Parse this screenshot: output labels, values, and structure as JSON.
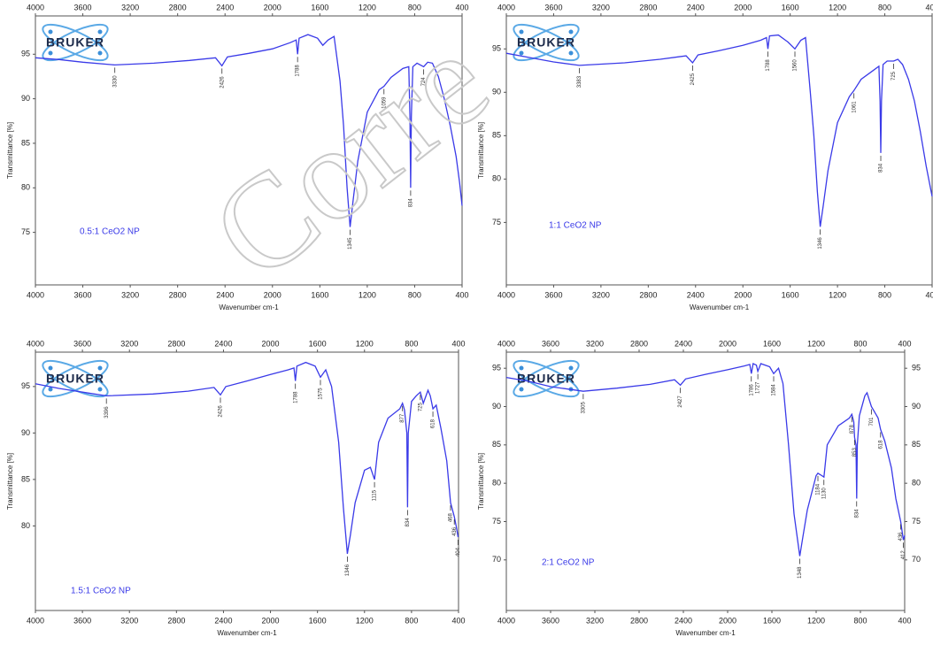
{
  "watermark": "Corre",
  "chart_data": [
    {
      "type": "line",
      "sample": "0.5:1 CeO2 NP",
      "logo": "BRUKER",
      "x_label": "Wavenumber cm-1",
      "y_label": "Transmittance [%]",
      "color": "#3a3ae8",
      "x": [
        4000,
        3800,
        3600,
        3330,
        3000,
        2700,
        2480,
        2426,
        2380,
        2200,
        2000,
        1850,
        1800,
        1788,
        1775,
        1700,
        1620,
        1575,
        1530,
        1480,
        1430,
        1400,
        1370,
        1345,
        1320,
        1280,
        1200,
        1100,
        1059,
        1000,
        900,
        850,
        840,
        834,
        828,
        815,
        780,
        724,
        690,
        650,
        600,
        550,
        500,
        450,
        420,
        400
      ],
      "values": [
        94.6,
        94.4,
        94.1,
        93.8,
        94.0,
        94.3,
        94.6,
        93.7,
        94.7,
        95.1,
        95.6,
        96.3,
        96.6,
        95.0,
        96.8,
        97.2,
        96.8,
        96.0,
        96.6,
        97.0,
        92.0,
        87.0,
        80.0,
        75.6,
        78.5,
        83.0,
        88.5,
        91.0,
        91.4,
        92.4,
        93.4,
        93.6,
        88.0,
        80.0,
        88.0,
        93.6,
        94.0,
        93.6,
        94.1,
        94.0,
        92.5,
        90.0,
        87.0,
        83.5,
        80.5,
        78.0
      ],
      "xlim": [
        4000,
        400
      ],
      "ylim": [
        69.1,
        99.3
      ],
      "xticks": [
        4000,
        3600,
        3200,
        2800,
        2400,
        2000,
        1600,
        1200,
        800,
        400
      ],
      "yticks": [
        75,
        80,
        85,
        90,
        95
      ],
      "peaks": [
        3330,
        2426,
        1788,
        1345,
        1059,
        834,
        724
      ],
      "right_axis": false
    },
    {
      "type": "line",
      "sample": "1:1 CeO2 NP",
      "logo": "BRUKER",
      "x_label": "Wavenumber cm-1",
      "y_label": "Transmittance [%]",
      "color": "#3a3ae8",
      "x": [
        4000,
        3800,
        3600,
        3383,
        3000,
        2700,
        2480,
        2425,
        2380,
        2200,
        2000,
        1850,
        1800,
        1788,
        1775,
        1700,
        1620,
        1560,
        1510,
        1470,
        1430,
        1400,
        1370,
        1346,
        1320,
        1280,
        1200,
        1100,
        1061,
        1000,
        900,
        850,
        840,
        834,
        828,
        815,
        780,
        725,
        690,
        650,
        600,
        550,
        500,
        450,
        400
      ],
      "values": [
        94.5,
        94.0,
        93.5,
        93.1,
        93.4,
        93.8,
        94.2,
        93.4,
        94.3,
        94.8,
        95.4,
        96.0,
        96.3,
        95.0,
        96.5,
        96.6,
        95.8,
        95.0,
        96.0,
        96.3,
        90.0,
        85.0,
        78.5,
        74.5,
        77.0,
        81.0,
        86.5,
        89.5,
        90.2,
        91.5,
        92.5,
        93.0,
        89.0,
        83.0,
        89.0,
        93.2,
        93.6,
        93.6,
        93.8,
        93.2,
        91.5,
        89.0,
        85.5,
        81.5,
        78.0
      ],
      "xlim": [
        4000,
        400
      ],
      "ylim": [
        67.8,
        98.8
      ],
      "xticks": [
        4000,
        3600,
        3200,
        2800,
        2400,
        2000,
        1600,
        1200,
        800,
        400
      ],
      "yticks": [
        75,
        80,
        85,
        90,
        95
      ],
      "peaks": [
        3383,
        2425,
        1788,
        1560,
        1346,
        1061,
        834,
        725
      ],
      "right_axis": false
    },
    {
      "type": "line",
      "sample": "1.5:1 CeO2 NP",
      "logo": "BRUKER",
      "x_label": "Wavenumber cm-1",
      "y_label": "Transmittance [%]",
      "color": "#3a3ae8",
      "x": [
        4000,
        3800,
        3600,
        3396,
        3000,
        2700,
        2480,
        2426,
        2380,
        2200,
        2000,
        1850,
        1800,
        1788,
        1775,
        1700,
        1620,
        1575,
        1530,
        1480,
        1420,
        1380,
        1346,
        1320,
        1280,
        1200,
        1150,
        1115,
        1080,
        1000,
        900,
        877,
        860,
        840,
        834,
        828,
        800,
        760,
        725,
        700,
        660,
        640,
        618,
        590,
        550,
        500,
        468,
        436,
        420,
        404
      ],
      "values": [
        95.3,
        94.8,
        94.4,
        94.0,
        94.2,
        94.5,
        94.9,
        94.1,
        95.0,
        95.6,
        96.3,
        96.8,
        97.0,
        95.6,
        97.2,
        97.6,
        97.2,
        96.0,
        96.8,
        95.0,
        89.0,
        82.0,
        77.0,
        79.0,
        82.5,
        86.0,
        86.3,
        85.0,
        89.0,
        91.6,
        92.6,
        93.2,
        92.5,
        90.0,
        82.0,
        90.0,
        93.4,
        94.0,
        94.4,
        93.2,
        94.6,
        94.0,
        92.6,
        93.0,
        90.5,
        87.0,
        82.5,
        81.0,
        80.0,
        78.8
      ],
      "xlim": [
        4000,
        400
      ],
      "ylim": [
        70.9,
        98.7
      ],
      "xticks": [
        4000,
        3600,
        3200,
        2800,
        2400,
        2000,
        1600,
        1200,
        800,
        400
      ],
      "yticks": [
        80,
        85,
        90,
        95
      ],
      "peaks": [
        3396,
        2426,
        1788,
        1575,
        1346,
        1115,
        877,
        834,
        725,
        618,
        468,
        436,
        404
      ],
      "right_axis": false
    },
    {
      "type": "line",
      "sample": "2:1 CeO2 NP",
      "logo": "BRUKER",
      "x_label": "Wavenumber cm-1",
      "y_label": "Transmittance [%]",
      "color": "#3a3ae8",
      "x": [
        4000,
        3800,
        3600,
        3305,
        3000,
        2700,
        2480,
        2427,
        2380,
        2200,
        2000,
        1850,
        1800,
        1786,
        1770,
        1740,
        1727,
        1700,
        1620,
        1584,
        1540,
        1500,
        1450,
        1400,
        1348,
        1320,
        1280,
        1200,
        1184,
        1150,
        1130,
        1100,
        1000,
        900,
        878,
        860,
        853,
        840,
        834,
        828,
        810,
        760,
        740,
        701,
        660,
        640,
        618,
        580,
        520,
        480,
        436,
        412,
        400
      ],
      "values": [
        93.8,
        93.3,
        92.6,
        92.0,
        92.4,
        92.9,
        93.5,
        92.8,
        93.6,
        94.2,
        94.8,
        95.3,
        95.5,
        94.3,
        95.6,
        95.4,
        94.6,
        95.6,
        95.2,
        94.3,
        95.0,
        93.0,
        85.0,
        76.0,
        70.5,
        73.0,
        76.5,
        81.0,
        81.3,
        81.0,
        80.8,
        85.0,
        87.5,
        88.5,
        89.0,
        88.0,
        86.0,
        85.0,
        78.0,
        85.0,
        88.8,
        91.4,
        91.8,
        90.0,
        89.0,
        88.5,
        87.0,
        85.5,
        82.0,
        78.0,
        75.0,
        72.6,
        73.2
      ],
      "xlim": [
        4000,
        400
      ],
      "ylim": [
        63.4,
        97.1
      ],
      "xticks": [
        4000,
        3600,
        3200,
        2800,
        2400,
        2000,
        1600,
        1200,
        800,
        400
      ],
      "yticks": [
        70,
        75,
        80,
        85,
        90,
        95
      ],
      "peaks": [
        3305,
        2427,
        1786,
        1727,
        1584,
        1348,
        1184,
        1130,
        878,
        853,
        834,
        701,
        618,
        436,
        412
      ],
      "right_axis": true
    }
  ]
}
